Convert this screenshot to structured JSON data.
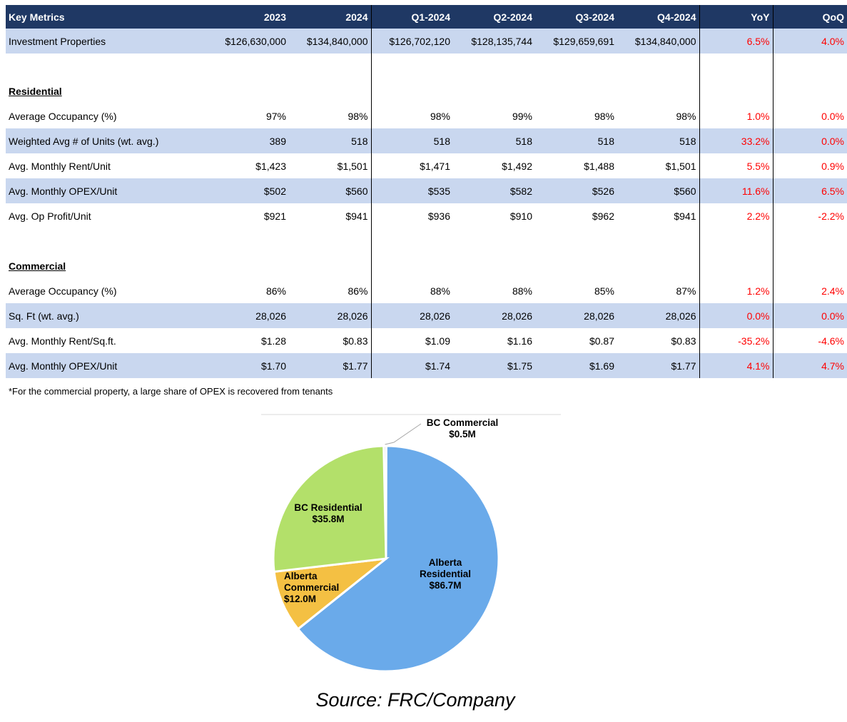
{
  "table": {
    "headers": [
      "Key Metrics",
      "2023",
      "2024",
      "Q1-2024",
      "Q2-2024",
      "Q3-2024",
      "Q4-2024",
      "YoY",
      "QoQ"
    ],
    "investment_row": [
      "Investment Properties",
      "$126,630,000",
      "$134,840,000",
      "$126,702,120",
      "$128,135,744",
      "$129,659,691",
      "$134,840,000",
      "6.5%",
      "4.0%"
    ],
    "residential": {
      "title": "Residential",
      "rows": [
        [
          "Average Occupancy (%)",
          "97%",
          "98%",
          "98%",
          "99%",
          "98%",
          "98%",
          "1.0%",
          "0.0%"
        ],
        [
          "Weighted Avg # of Units (wt. avg.)",
          "389",
          "518",
          "518",
          "518",
          "518",
          "518",
          "33.2%",
          "0.0%"
        ],
        [
          "Avg. Monthly Rent/Unit",
          "$1,423",
          "$1,501",
          "$1,471",
          "$1,492",
          "$1,488",
          "$1,501",
          "5.5%",
          "0.9%"
        ],
        [
          "Avg. Monthly OPEX/Unit",
          "$502",
          "$560",
          "$535",
          "$582",
          "$526",
          "$560",
          "11.6%",
          "6.5%"
        ],
        [
          "Avg. Op Profit/Unit",
          "$921",
          "$941",
          "$936",
          "$910",
          "$962",
          "$941",
          "2.2%",
          "-2.2%"
        ]
      ]
    },
    "commercial": {
      "title": "Commercial",
      "rows": [
        [
          "Average Occupancy (%)",
          "86%",
          "86%",
          "88%",
          "88%",
          "85%",
          "87%",
          "1.2%",
          "2.4%"
        ],
        [
          " Sq. Ft (wt. avg.)",
          "28,026",
          "28,026",
          "28,026",
          "28,026",
          "28,026",
          "28,026",
          "0.0%",
          "0.0%"
        ],
        [
          "Avg. Monthly Rent/Sq.ft.",
          "$1.28",
          "$0.83",
          "$1.09",
          "$1.16",
          "$0.87",
          "$0.83",
          "-35.2%",
          "-4.6%"
        ],
        [
          "Avg. Monthly OPEX/Unit",
          "$1.70",
          "$1.77",
          "$1.74",
          "$1.75",
          "$1.69",
          "$1.77",
          "4.1%",
          "4.7%"
        ]
      ]
    }
  },
  "footnote": "*For the commercial property,  a large share of OPEX is recovered from tenants",
  "chart_data": {
    "type": "pie",
    "title": "",
    "slices": [
      {
        "name": "BC Commercial",
        "label_lines": [
          "BC Commercial",
          "$0.5M"
        ],
        "value": 0.5,
        "color": "#c9c9c9"
      },
      {
        "name": "Alberta Residential",
        "label_lines": [
          "Alberta",
          "Residential",
          "$86.7M"
        ],
        "value": 86.7,
        "color": "#6aaaea"
      },
      {
        "name": "Alberta Commercial",
        "label_lines": [
          "Alberta",
          "Commercial",
          "$12.0M"
        ],
        "value": 12.0,
        "color": "#f4c043"
      },
      {
        "name": "BC Residential",
        "label_lines": [
          "BC Residential",
          "$35.8M"
        ],
        "value": 35.8,
        "color": "#b3e06a"
      }
    ]
  },
  "source": "Source: FRC/Company",
  "colors": {
    "header_bg": "#1f3864",
    "band": "#c9d7ef",
    "pct_text": "#ff0000"
  }
}
